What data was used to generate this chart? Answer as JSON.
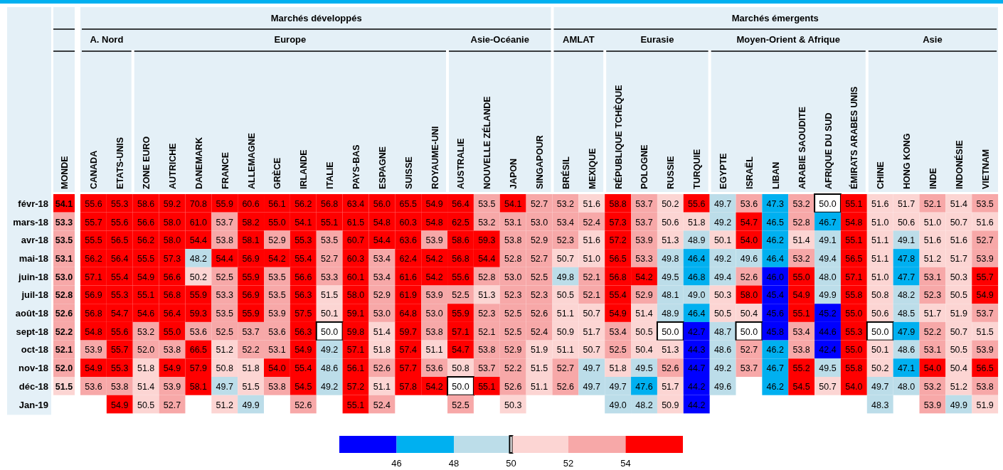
{
  "chart_data": {
    "type": "heatmap",
    "categories": [
      "MONDE",
      "CANADA",
      "ETATS-UNIS",
      "ZONE EURO",
      "AUTRICHE",
      "DANEMARK",
      "FRANCE",
      "ALLEMAGNE",
      "GRÈCE",
      "IRLANDE",
      "ITALIE",
      "PAYS-BAS",
      "ESPAGNE",
      "SUISSE",
      "ROYAUME-UNI",
      "AUSTRALIE",
      "NOUVELLE ZÉLANDE",
      "JAPON",
      "SINGAPOUR",
      "BRÉSIL",
      "MEXIQUE",
      "RÉPUBLIQUE TCHÈQUE",
      "POLOGNE",
      "RUSSIE",
      "TURQUIE",
      "EGYPTE",
      "ISRAËL",
      "LIBAN",
      "ARABIE SAOUDITE",
      "AFRIQUE DU SUD",
      "ÉMIRATS ARABES UNIS",
      "CHINE",
      "HONG KONG",
      "INDE",
      "INDONÉSIE",
      "VIETNAM"
    ],
    "y_categories": [
      "févr-18",
      "mars-18",
      "avr-18",
      "mai-18",
      "juin-18",
      "juil-18",
      "août-18",
      "sept-18",
      "oct-18",
      "nov-18",
      "déc-18",
      "Jan-19"
    ],
    "cells": [
      [
        54.1,
        55.6,
        55.3,
        58.6,
        59.2,
        70.8,
        55.9,
        60.6,
        56.1,
        56.2,
        56.8,
        63.4,
        56.0,
        65.5,
        54.9,
        56.4,
        53.5,
        54.1,
        52.7,
        53.2,
        51.6,
        58.8,
        53.7,
        50.2,
        55.6,
        49.7,
        53.6,
        47.3,
        53.2,
        50.0,
        55.1,
        51.6,
        51.7,
        52.1,
        51.4,
        53.5
      ],
      [
        53.3,
        55.7,
        55.6,
        56.6,
        58.0,
        61.0,
        53.7,
        58.2,
        55.0,
        54.1,
        55.1,
        61.5,
        54.8,
        60.3,
        54.8,
        62.5,
        53.2,
        53.1,
        53.0,
        53.4,
        52.4,
        57.3,
        53.7,
        50.6,
        51.8,
        49.2,
        54.7,
        46.5,
        52.8,
        46.7,
        54.8,
        51.0,
        50.6,
        51.0,
        50.7,
        51.6
      ],
      [
        53.5,
        55.5,
        56.5,
        56.2,
        58.0,
        54.4,
        53.8,
        58.1,
        52.9,
        55.3,
        53.5,
        60.7,
        54.4,
        63.6,
        53.9,
        58.6,
        59.3,
        53.8,
        52.9,
        52.3,
        51.6,
        57.2,
        53.9,
        51.3,
        48.9,
        50.1,
        54.0,
        46.2,
        51.4,
        49.1,
        55.1,
        51.1,
        49.1,
        51.6,
        51.6,
        52.7
      ],
      [
        53.1,
        56.2,
        56.4,
        55.5,
        57.3,
        48.2,
        54.4,
        56.9,
        54.2,
        55.4,
        52.7,
        60.3,
        53.4,
        62.4,
        54.2,
        56.8,
        54.4,
        52.8,
        52.7,
        50.7,
        51.0,
        56.5,
        53.3,
        49.8,
        46.4,
        49.2,
        49.6,
        46.4,
        53.2,
        49.4,
        56.5,
        51.1,
        47.8,
        51.2,
        51.7,
        53.9
      ],
      [
        53.0,
        57.1,
        55.4,
        54.9,
        56.6,
        50.2,
        52.5,
        55.9,
        53.5,
        56.6,
        53.3,
        60.1,
        53.4,
        61.6,
        54.2,
        55.6,
        52.8,
        53.0,
        52.5,
        49.8,
        52.1,
        56.8,
        54.2,
        49.5,
        46.8,
        49.4,
        52.6,
        46.0,
        55.0,
        48.0,
        57.1,
        51.0,
        47.7,
        53.1,
        50.3,
        55.7
      ],
      [
        52.8,
        56.9,
        55.3,
        55.1,
        56.8,
        55.9,
        53.3,
        56.9,
        53.5,
        56.3,
        51.5,
        58.0,
        52.9,
        61.9,
        53.9,
        52.5,
        51.3,
        52.3,
        52.3,
        50.5,
        52.1,
        55.4,
        52.9,
        48.1,
        49.0,
        50.3,
        58.0,
        45.4,
        54.9,
        49.9,
        55.8,
        50.8,
        48.2,
        52.3,
        50.5,
        54.9
      ],
      [
        52.6,
        56.8,
        54.7,
        54.6,
        56.4,
        59.3,
        53.5,
        55.9,
        53.9,
        57.5,
        50.1,
        59.1,
        53.0,
        64.8,
        53.0,
        55.9,
        52.3,
        52.5,
        52.6,
        51.1,
        50.7,
        54.9,
        51.4,
        48.9,
        46.4,
        50.5,
        50.4,
        45.6,
        55.1,
        45.2,
        55.0,
        50.6,
        48.5,
        51.7,
        51.9,
        53.7
      ],
      [
        52.2,
        54.8,
        55.6,
        53.2,
        55.0,
        53.6,
        52.5,
        53.7,
        53.6,
        56.3,
        50.0,
        59.8,
        51.4,
        59.7,
        53.8,
        57.1,
        52.1,
        52.5,
        52.4,
        50.9,
        51.7,
        53.4,
        50.5,
        50.0,
        42.7,
        48.7,
        50.0,
        45.8,
        53.4,
        44.6,
        55.3,
        50.0,
        47.9,
        52.2,
        50.7,
        51.5
      ],
      [
        52.1,
        53.9,
        55.7,
        52.0,
        53.8,
        66.5,
        51.2,
        52.2,
        53.1,
        54.9,
        49.2,
        57.1,
        51.8,
        57.4,
        51.1,
        54.7,
        53.8,
        52.9,
        51.9,
        51.1,
        50.7,
        52.5,
        50.4,
        51.3,
        44.3,
        48.6,
        52.7,
        46.2,
        53.8,
        42.4,
        55.0,
        50.1,
        48.6,
        53.1,
        50.5,
        53.9
      ],
      [
        52.0,
        54.9,
        55.3,
        51.8,
        54.9,
        57.9,
        50.8,
        51.8,
        54.0,
        55.4,
        48.6,
        56.1,
        52.6,
        57.7,
        53.6,
        50.8,
        53.7,
        52.2,
        51.5,
        52.7,
        49.7,
        51.8,
        49.5,
        52.6,
        44.7,
        49.2,
        53.7,
        46.7,
        55.2,
        49.5,
        55.8,
        50.2,
        47.1,
        54.0,
        50.4,
        56.5
      ],
      [
        51.5,
        53.6,
        53.8,
        51.4,
        53.9,
        58.1,
        49.7,
        51.5,
        53.8,
        54.5,
        49.2,
        57.2,
        51.1,
        57.8,
        54.2,
        50.0,
        55.1,
        52.6,
        51.1,
        52.6,
        49.7,
        49.7,
        47.6,
        51.7,
        44.2,
        49.6,
        null,
        46.2,
        54.5,
        50.7,
        54.0,
        49.7,
        48.0,
        53.2,
        51.2,
        53.8
      ],
      [
        null,
        null,
        54.9,
        50.5,
        52.7,
        null,
        51.2,
        49.9,
        null,
        52.6,
        null,
        55.1,
        52.4,
        null,
        null,
        52.5,
        null,
        50.3,
        null,
        null,
        null,
        49.0,
        48.2,
        50.9,
        44.2,
        null,
        null,
        null,
        null,
        null,
        null,
        48.3,
        null,
        53.9,
        49.9,
        51.9
      ]
    ],
    "cell_labels": [
      [
        "54.1",
        "55.6",
        "55.3",
        "58.6",
        "59.2",
        "70.8",
        "55.9",
        "60.6",
        "56.1",
        "56.2",
        "56.8",
        "63.4",
        "56.0",
        "65.5",
        "54.9",
        "56.4",
        "53.5",
        "54.1",
        "52.7",
        "53.2",
        "51.6",
        "58.8",
        "53.7",
        "50.2",
        "55.6",
        "49.7",
        "53.6",
        "47.3",
        "53.2",
        "50.0",
        "55.1",
        "51.6",
        "51.7",
        "52.1",
        "51.4",
        "53.5"
      ],
      [
        "53.3",
        "55.7",
        "55.6",
        "56.6",
        "58.0",
        "61.0",
        "53.7",
        "58.2",
        "55.0",
        "54.1",
        "55.1",
        "61.5",
        "54.8",
        "60.3",
        "54.8",
        "62.5",
        "53.2",
        "53.1",
        "53.0",
        "53.4",
        "52.4",
        "57.3",
        "53.7",
        "50.6",
        "51.8",
        "49.2",
        "54.7",
        "46.5",
        "52.8",
        "46.7",
        "54.8",
        "51.0",
        "50.6",
        "51.0",
        "50.7",
        "51.6"
      ],
      [
        "53.5",
        "55.5",
        "56.5",
        "56.2",
        "58.0",
        "54.4",
        "53.8",
        "58.1",
        "52.9",
        "55.3",
        "53.5",
        "60.7",
        "54.4",
        "63.6",
        "53.9",
        "58.6",
        "59.3",
        "53.8",
        "52.9",
        "52.3",
        "51.6",
        "57.2",
        "53.9",
        "51.3",
        "48.9",
        "50.1",
        "54.0",
        "46.2",
        "51.4",
        "49.1",
        "55.1",
        "51.1",
        "49.1",
        "51.6",
        "51.6",
        "52.7"
      ],
      [
        "53.1",
        "56.2",
        "56.4",
        "55.5",
        "57.3",
        "48.2",
        "54.4",
        "56.9",
        "54.2",
        "55.4",
        "52.7",
        "60.3",
        "53.4",
        "62.4",
        "54.2",
        "56.8",
        "54.4",
        "52.8",
        "52.7",
        "50.7",
        "51.0",
        "56.5",
        "53.3",
        "49.8",
        "46.4",
        "49.2",
        "49.6",
        "46.4",
        "53.2",
        "49.4",
        "56.5",
        "51.1",
        "47.8",
        "51.2",
        "51.7",
        "53.9"
      ],
      [
        "53.0",
        "57.1",
        "55.4",
        "54.9",
        "56.6",
        "50.2",
        "52.5",
        "55.9",
        "53.5",
        "56.6",
        "53.3",
        "60.1",
        "53.4",
        "61.6",
        "54.2",
        "55.6",
        "52.8",
        "53.0",
        "52.5",
        "49.8",
        "52.1",
        "56.8",
        "54.2",
        "49.5",
        "46.8",
        "49.4",
        "52.6",
        "46.0",
        "55.0",
        "48.0",
        "57.1",
        "51.0",
        "47.7",
        "53.1",
        "50.3",
        "55.7"
      ],
      [
        "52.8",
        "56.9",
        "55.3",
        "55.1",
        "56.8",
        "55.9",
        "53.3",
        "56.9",
        "53.5",
        "56.3",
        "51.5",
        "58.0",
        "52.9",
        "61.9",
        "53.9",
        "52.5",
        "51.3",
        "52.3",
        "52.3",
        "50.5",
        "52.1",
        "55.4",
        "52.9",
        "48.1",
        "49.0",
        "50.3",
        "58.0",
        "45.4",
        "54.9",
        "49.9",
        "55.8",
        "50.8",
        "48.2",
        "52.3",
        "50.5",
        "54.9"
      ],
      [
        "52.6",
        "56.8",
        "54.7",
        "54.6",
        "56.4",
        "59.3",
        "53.5",
        "55.9",
        "53.9",
        "57.5",
        "50.1",
        "59.1",
        "53.0",
        "64.8",
        "53.0",
        "55.9",
        "52.3",
        "52.5",
        "52.6",
        "51.1",
        "50.7",
        "54.9",
        "51.4",
        "48.9",
        "46.4",
        "50.5",
        "50.4",
        "45.6",
        "55.1",
        "45.2",
        "55.0",
        "50.6",
        "48.5",
        "51.7",
        "51.9",
        "53.7"
      ],
      [
        "52.2",
        "54.8",
        "55.6",
        "53.2",
        "55.0",
        "53.6",
        "52.5",
        "53.7",
        "53.6",
        "56.3",
        "50.0",
        "59.8",
        "51.4",
        "59.7",
        "53.8",
        "57.1",
        "52.1",
        "52.5",
        "52.4",
        "50.9",
        "51.7",
        "53.4",
        "50.5",
        "50.0",
        "42.7",
        "48.7",
        "50.0",
        "45.8",
        "53.4",
        "44.6",
        "55.3",
        "50.0",
        "47.9",
        "52.2",
        "50.7",
        "51.5"
      ],
      [
        "52.1",
        "53.9",
        "55.7",
        "52.0",
        "53.8",
        "66.5",
        "51.2",
        "52.2",
        "53.1",
        "54.9",
        "49.2",
        "57.1",
        "51.8",
        "57.4",
        "51.1",
        "54.7",
        "53.8",
        "52.9",
        "51.9",
        "51.1",
        "50.7",
        "52.5",
        "50.4",
        "51.3",
        "44.3",
        "48.6",
        "52.7",
        "46.2",
        "53.8",
        "42.4",
        "55.0",
        "50.1",
        "48.6",
        "53.1",
        "50.5",
        "53.9"
      ],
      [
        "52.0",
        "54.9",
        "55.3",
        "51.8",
        "54.9",
        "57.9",
        "50.8",
        "51.8",
        "54.0",
        "55.4",
        "48.6",
        "56.1",
        "52.6",
        "57.7",
        "53.6",
        "50.8",
        "53.7",
        "52.2",
        "51.5",
        "52.7",
        "49.7",
        "51.8",
        "49.5",
        "52.6",
        "44.7",
        "49.2",
        "53.7",
        "46.7",
        "55.2",
        "49.5",
        "55.8",
        "50.2",
        "47.1",
        "54.0",
        "50.4",
        "56.5"
      ],
      [
        "51.5",
        "53.6",
        "53.8",
        "51.4",
        "53.9",
        "58.1",
        "49.7",
        "51.5",
        "53.8",
        "54.5",
        "49.2",
        "57.2",
        "51.1",
        "57.8",
        "54.2",
        "50.0",
        "55.1",
        "52.6",
        "51.1",
        "52.6",
        "49.7",
        "49.7",
        "47.6",
        "51.7",
        "44.2",
        "49.6",
        null,
        "46.2",
        "54.5",
        "50.7",
        "54.0",
        "49.7",
        "48.0",
        "53.2",
        "51.2",
        "53.8"
      ],
      [
        null,
        null,
        "54.9",
        "50.5",
        "52.7",
        null,
        "51.2",
        "49.9",
        null,
        "52.6",
        null,
        "55.1",
        "52.4",
        null,
        null,
        "52.5",
        null,
        "50.3",
        null,
        null,
        null,
        "49.0",
        "48.2",
        "50.9",
        "44.2",
        null,
        null,
        null,
        null,
        null,
        null,
        "48.3",
        null,
        "53.9",
        "49.9",
        "51.9"
      ]
    ],
    "clim": [
      44,
      56
    ],
    "cticks": [
      46,
      48,
      50,
      52,
      54
    ],
    "data_labels": true,
    "annotations": [
      "Marchés développés",
      "Marchés émergents",
      "A. Nord",
      "Europe",
      "Asie-Océanie",
      "AMLAT",
      "Eurasie",
      "Moyen-Orient & Afrique",
      "Asie"
    ]
  }
}
